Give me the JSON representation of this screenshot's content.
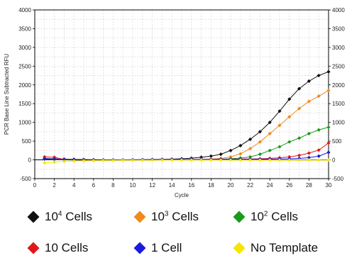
{
  "chart_data": {
    "type": "line",
    "xlabel": "Cycle",
    "ylabel": "PCR Base Line Subtracted RFU",
    "xlim": [
      0,
      30
    ],
    "ylim": [
      -500,
      4000
    ],
    "grid": true,
    "x_ticks": [
      "0",
      "2",
      "4",
      "6",
      "8",
      "10",
      "12",
      "14",
      "16",
      "18",
      "20",
      "22",
      "24",
      "26",
      "28",
      "30"
    ],
    "y_ticks": [
      "-500",
      "0",
      "500",
      "1000",
      "1500",
      "2000",
      "2500",
      "3000",
      "3500",
      "4000"
    ],
    "x": [
      1,
      2,
      3,
      4,
      5,
      6,
      7,
      8,
      9,
      10,
      11,
      12,
      13,
      14,
      15,
      16,
      17,
      18,
      19,
      20,
      21,
      22,
      23,
      24,
      25,
      26,
      27,
      28,
      29,
      30
    ],
    "series": [
      {
        "name": "10^4 Cells",
        "label_base": "10",
        "label_sup": "4",
        "label_rest": " Cells",
        "color": "#111111",
        "values": [
          40,
          30,
          20,
          15,
          10,
          5,
          0,
          -5,
          -5,
          0,
          5,
          10,
          15,
          20,
          30,
          45,
          70,
          100,
          150,
          250,
          380,
          550,
          750,
          1000,
          1300,
          1620,
          1900,
          2100,
          2250,
          2350
        ]
      },
      {
        "name": "10^3 Cells",
        "label_base": "10",
        "label_sup": "3",
        "label_rest": " Cells",
        "color": "#f08a1c",
        "values": [
          30,
          20,
          10,
          5,
          0,
          0,
          -5,
          -5,
          -10,
          -10,
          -5,
          0,
          0,
          5,
          10,
          15,
          20,
          25,
          40,
          80,
          160,
          300,
          480,
          700,
          920,
          1150,
          1370,
          1560,
          1700,
          1850
        ]
      },
      {
        "name": "10^2 Cells",
        "label_base": "10",
        "label_sup": "2",
        "label_rest": " Cells",
        "color": "#1a9a1a",
        "values": [
          20,
          10,
          0,
          -5,
          -10,
          -10,
          -10,
          -10,
          -5,
          -5,
          -5,
          0,
          0,
          0,
          5,
          5,
          10,
          10,
          20,
          30,
          50,
          80,
          150,
          250,
          350,
          480,
          580,
          700,
          800,
          870
        ]
      },
      {
        "name": "10 Cells",
        "label_base": "10 Cells",
        "label_sup": "",
        "label_rest": "",
        "color": "#e01818",
        "values": [
          80,
          70,
          10,
          0,
          -5,
          -5,
          -5,
          -5,
          0,
          0,
          0,
          0,
          5,
          5,
          5,
          10,
          10,
          15,
          20,
          20,
          25,
          25,
          30,
          40,
          55,
          80,
          120,
          180,
          260,
          450
        ]
      },
      {
        "name": "1 Cell",
        "label_base": "1 Cell",
        "label_sup": "",
        "label_rest": "",
        "color": "#1a1ae0",
        "values": [
          30,
          20,
          10,
          5,
          0,
          0,
          0,
          0,
          0,
          5,
          5,
          5,
          5,
          5,
          10,
          10,
          10,
          10,
          15,
          15,
          15,
          15,
          20,
          20,
          25,
          30,
          40,
          60,
          100,
          200
        ]
      },
      {
        "name": "No Template",
        "label_base": "No Template",
        "label_sup": "",
        "label_rest": "",
        "color": "#f5e500",
        "values": [
          -80,
          -60,
          -40,
          -30,
          -25,
          -20,
          -15,
          -15,
          -10,
          -10,
          -10,
          -10,
          -5,
          -5,
          -5,
          -5,
          -5,
          -5,
          -5,
          -5,
          -5,
          -5,
          -5,
          -5,
          -5,
          -5,
          -5,
          -5,
          -5,
          -5
        ]
      }
    ]
  }
}
